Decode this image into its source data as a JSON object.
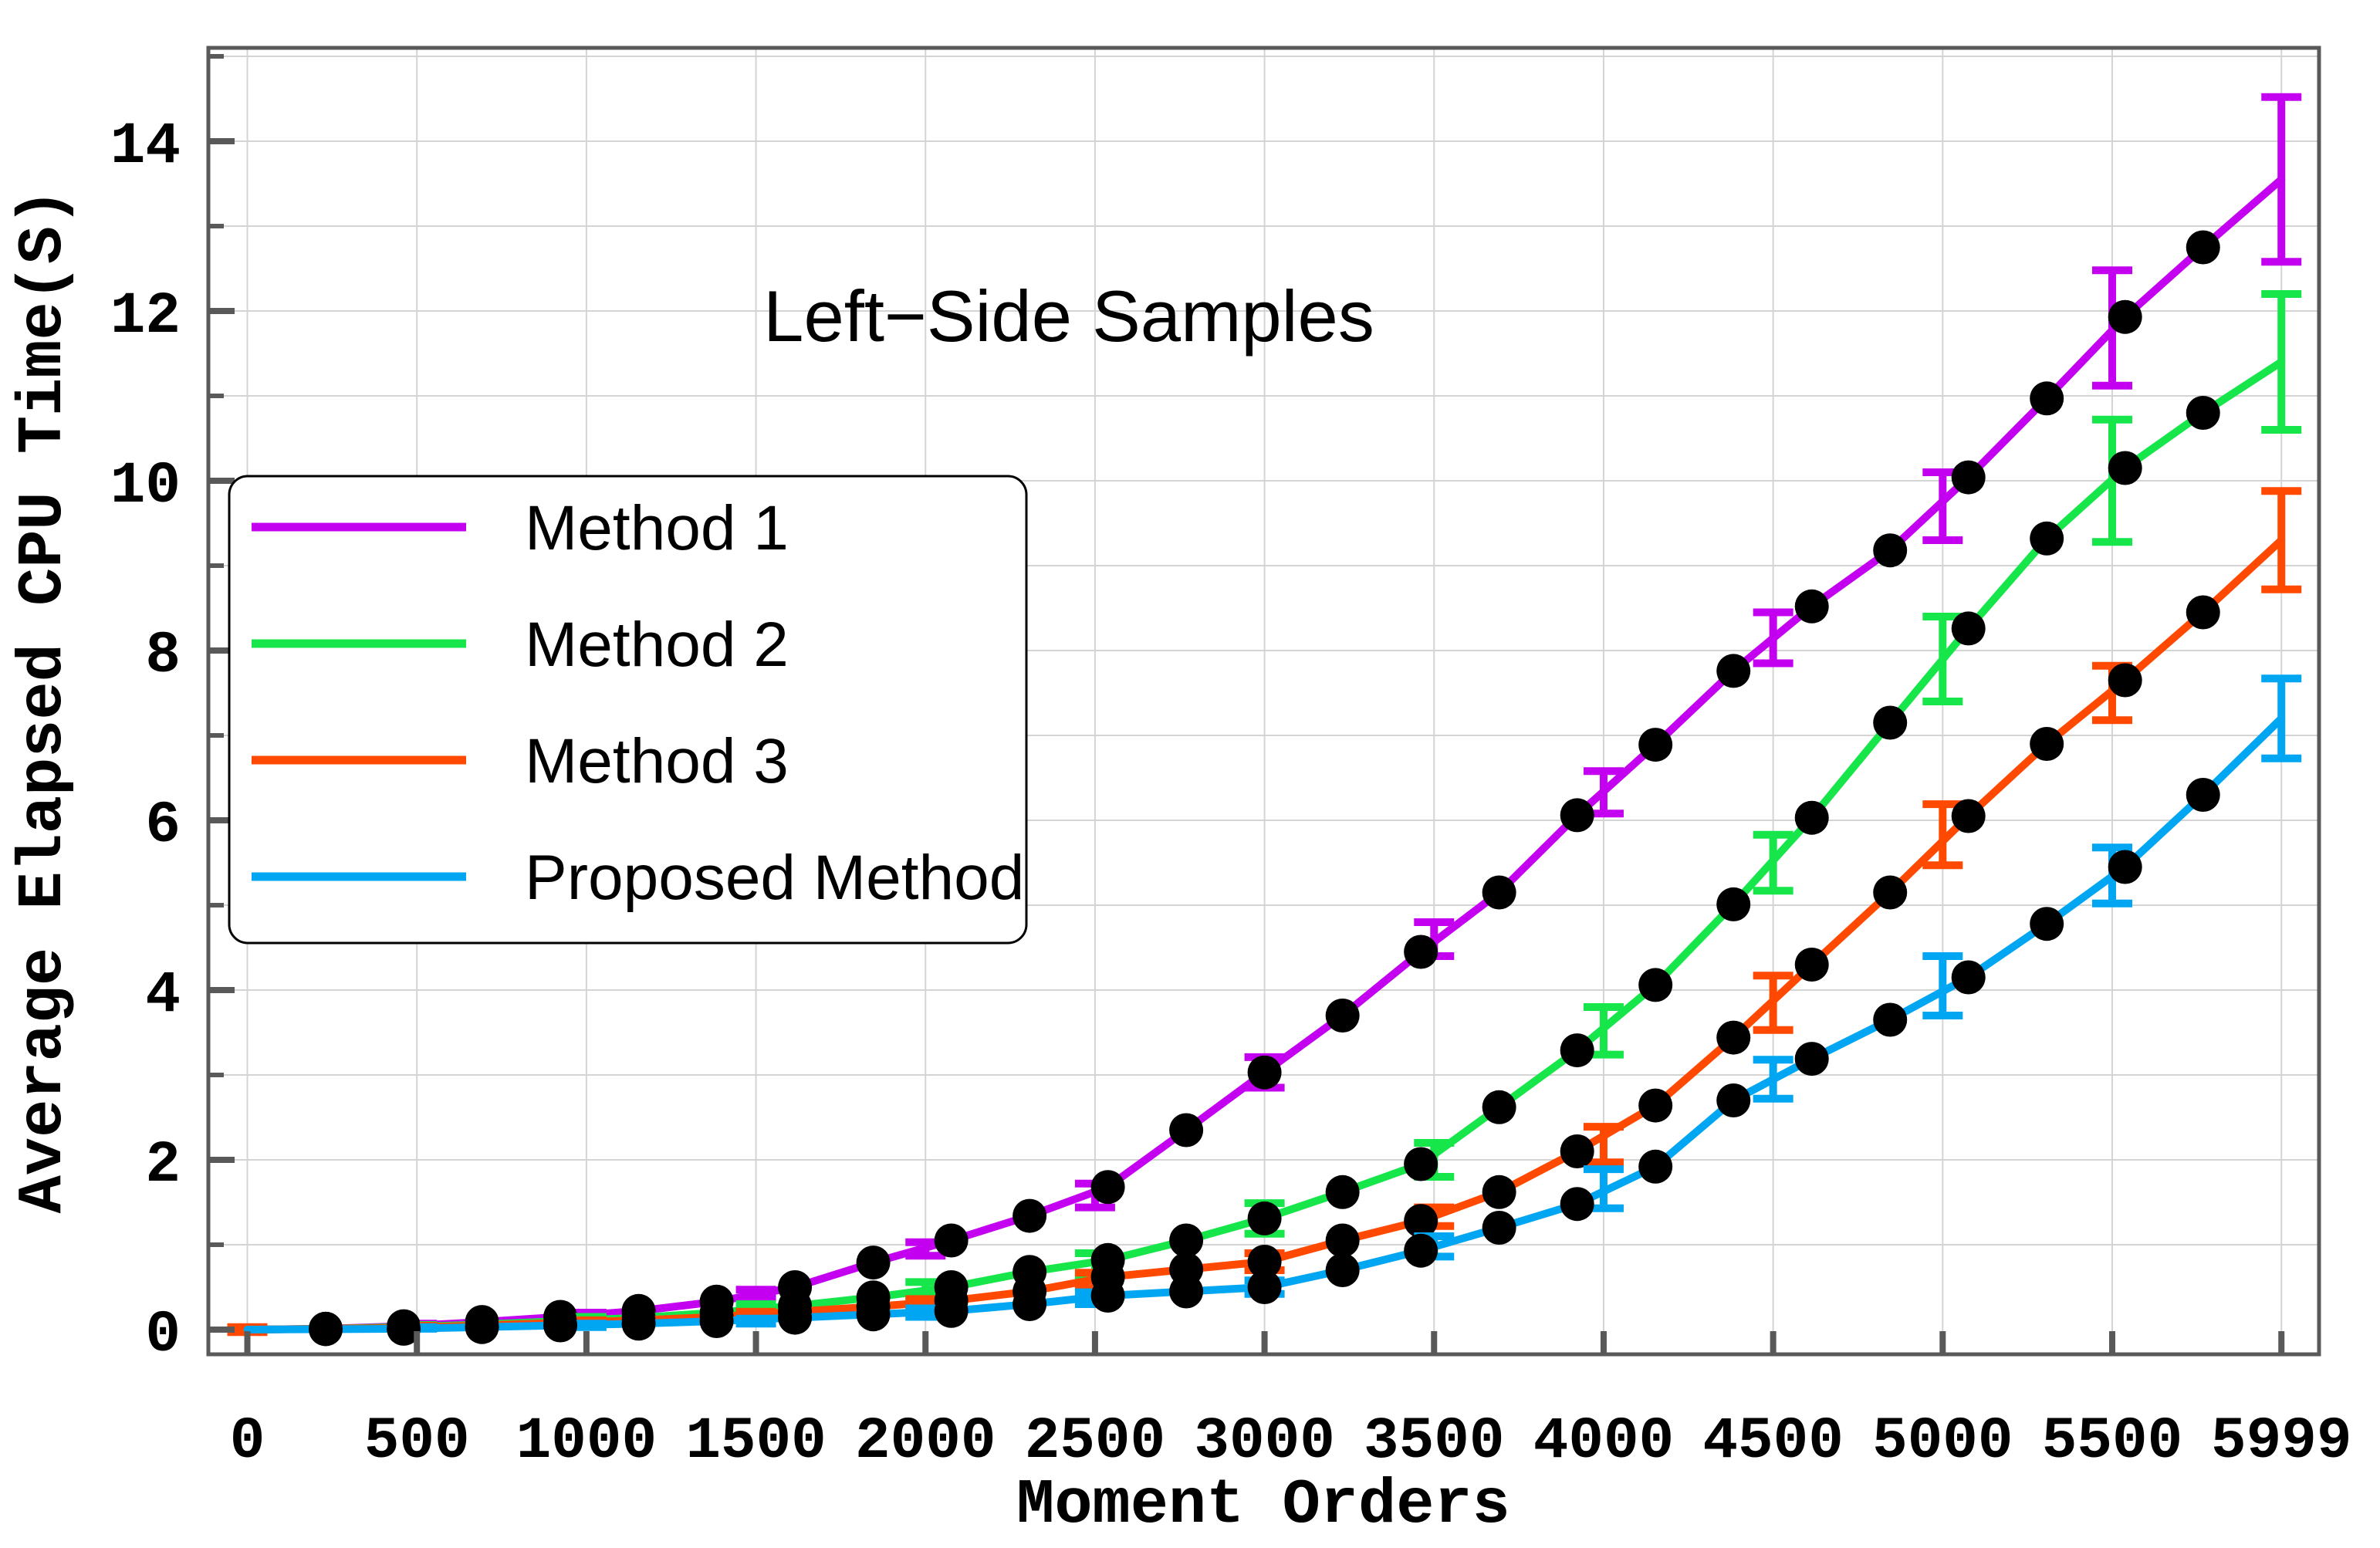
{
  "title": "Left−Side Samples",
  "colors": {
    "frame": "#595959",
    "grid": "#d4d4d4",
    "marker": "#000000",
    "legend_border": "#000000",
    "background": "#ffffff",
    "method1": "#c400f0",
    "method2": "#17e64b",
    "method3": "#ff4800",
    "proposed": "#00a6f2"
  },
  "legend": {
    "entries": [
      {
        "label": "Method 1",
        "color": "#c400f0"
      },
      {
        "label": "Method 2",
        "color": "#17e64b"
      },
      {
        "label": "Method 3",
        "color": "#ff4800"
      },
      {
        "label": "Proposed Method",
        "color": "#00a6f2"
      }
    ]
  },
  "chart_data": {
    "type": "line",
    "title": "Left−Side Samples",
    "xlabel": "Moment Orders",
    "ylabel": "Average Elapsed CPU Time(S)",
    "x_tick_labels": [
      "0",
      "500",
      "1000",
      "1500",
      "2000",
      "2500",
      "3000",
      "3500",
      "4000",
      "4500",
      "5000",
      "5500",
      "5999"
    ],
    "x_ticks": [
      0,
      500,
      1000,
      1500,
      2000,
      2500,
      3000,
      3500,
      4000,
      4500,
      5000,
      5500,
      5999
    ],
    "y_ticks": [
      0,
      2,
      4,
      6,
      8,
      10,
      12,
      14
    ],
    "y_gridlines": [
      1,
      2,
      3,
      4,
      5,
      6,
      7,
      8,
      9,
      10,
      11,
      12,
      13,
      14,
      15
    ],
    "xlim": [
      -115,
      6110
    ],
    "ylim": [
      -0.291,
      15.1
    ],
    "grid": true,
    "legend_position": "upper-left-inside",
    "x": [
      0,
      231,
      461,
      692,
      923,
      1154,
      1384,
      1615,
      1846,
      2076,
      2307,
      2538,
      2769,
      3000,
      3230,
      3461,
      3692,
      3922,
      4153,
      4383,
      4614,
      4845,
      5076,
      5307,
      5538,
      5768,
      5999
    ],
    "series": [
      {
        "name": "Method 1",
        "color": "#c400f0",
        "values": [
          0,
          0.01,
          0.04,
          0.09,
          0.15,
          0.22,
          0.33,
          0.5,
          0.79,
          1.05,
          1.34,
          1.68,
          2.35,
          3.03,
          3.7,
          4.45,
          5.15,
          6.06,
          6.89,
          7.76,
          8.52,
          9.18,
          10.04,
          10.97,
          11.93,
          12.75,
          13.55
        ],
        "error_bars": {
          "x": [
            500,
            1000,
            1500,
            2000,
            2500,
            3000,
            3500,
            4000,
            4500,
            5000,
            5500,
            5999
          ],
          "y": [
            0.05,
            0.17,
            0.42,
            0.95,
            1.58,
            3.03,
            4.6,
            6.33,
            8.15,
            9.7,
            11.8,
            13.55
          ],
          "err": [
            0.02,
            0.03,
            0.05,
            0.08,
            0.14,
            0.18,
            0.2,
            0.25,
            0.3,
            0.4,
            0.68,
            0.97
          ]
        }
      },
      {
        "name": "Method 2",
        "color": "#17e64b",
        "values": [
          0,
          0.01,
          0.03,
          0.06,
          0.1,
          0.14,
          0.2,
          0.28,
          0.38,
          0.5,
          0.68,
          0.82,
          1.05,
          1.31,
          1.62,
          1.95,
          2.62,
          3.29,
          4.06,
          5.01,
          6.03,
          7.15,
          8.26,
          9.32,
          10.15,
          10.8,
          11.4
        ],
        "error_bars": {
          "x": [
            500,
            1000,
            1500,
            2000,
            2500,
            3000,
            3500,
            4000,
            4500,
            5000,
            5500,
            5999
          ],
          "y": [
            0.035,
            0.12,
            0.25,
            0.48,
            0.77,
            1.31,
            2.0,
            3.52,
            5.5,
            7.9,
            10.0,
            11.4
          ],
          "err": [
            0.02,
            0.03,
            0.05,
            0.08,
            0.13,
            0.18,
            0.2,
            0.28,
            0.33,
            0.5,
            0.72,
            0.8
          ]
        }
      },
      {
        "name": "Method 3",
        "color": "#ff4800",
        "values": [
          0,
          0.01,
          0.02,
          0.05,
          0.08,
          0.11,
          0.15,
          0.21,
          0.27,
          0.34,
          0.45,
          0.62,
          0.71,
          0.8,
          1.05,
          1.28,
          1.62,
          2.1,
          2.64,
          3.44,
          4.3,
          5.15,
          6.05,
          6.9,
          7.65,
          8.45,
          9.3
        ],
        "error_bars": {
          "x": [
            0,
            500,
            1000,
            1500,
            2000,
            2500,
            3000,
            3500,
            4000,
            4500,
            5000,
            5500,
            5999
          ],
          "y": [
            0,
            0.03,
            0.09,
            0.18,
            0.31,
            0.58,
            0.8,
            1.33,
            2.18,
            3.85,
            5.83,
            7.5,
            9.3
          ],
          "err": [
            0.03,
            0.015,
            0.02,
            0.03,
            0.05,
            0.09,
            0.1,
            0.11,
            0.21,
            0.32,
            0.36,
            0.32,
            0.58
          ]
        }
      },
      {
        "name": "Proposed Method",
        "color": "#00a6f2",
        "values": [
          0,
          0.005,
          0.01,
          0.03,
          0.05,
          0.07,
          0.1,
          0.14,
          0.18,
          0.22,
          0.3,
          0.4,
          0.45,
          0.5,
          0.7,
          0.93,
          1.2,
          1.48,
          1.92,
          2.7,
          3.19,
          3.65,
          4.15,
          4.78,
          5.45,
          6.3,
          7.2
        ],
        "error_bars": {
          "x": [
            500,
            1000,
            1500,
            2000,
            2500,
            3000,
            3500,
            4000,
            4500,
            5000,
            5500,
            5999
          ],
          "y": [
            0.02,
            0.05,
            0.1,
            0.2,
            0.37,
            0.5,
            0.98,
            1.66,
            2.95,
            4.05,
            5.35,
            7.2
          ],
          "err": [
            0.01,
            0.02,
            0.03,
            0.05,
            0.07,
            0.08,
            0.12,
            0.23,
            0.23,
            0.35,
            0.33,
            0.47
          ]
        }
      }
    ]
  }
}
